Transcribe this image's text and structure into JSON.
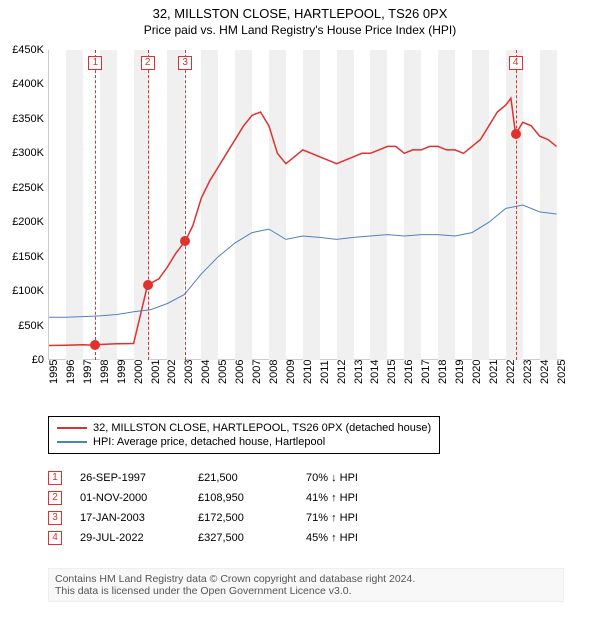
{
  "title_line1": "32, MILLSTON CLOSE, HARTLEPOOL, TS26 0PX",
  "title_line2": "Price paid vs. HM Land Registry's House Price Index (HPI)",
  "chart": {
    "type": "line",
    "background_color": "#ffffff",
    "xgrid_color": "#f0f0f0",
    "ylim": [
      0,
      450000
    ],
    "yticks": [
      0,
      50000,
      100000,
      150000,
      200000,
      250000,
      300000,
      350000,
      400000,
      450000
    ],
    "ytick_labels": [
      "£0",
      "£50K",
      "£100K",
      "£150K",
      "£200K",
      "£250K",
      "£300K",
      "£350K",
      "£400K",
      "£450K"
    ],
    "xlim": [
      1995,
      2025.5
    ],
    "xticks": [
      1995,
      1996,
      1997,
      1998,
      1999,
      2000,
      2001,
      2002,
      2003,
      2004,
      2005,
      2006,
      2007,
      2008,
      2009,
      2010,
      2011,
      2012,
      2013,
      2014,
      2015,
      2016,
      2017,
      2018,
      2019,
      2020,
      2021,
      2022,
      2023,
      2024,
      2025
    ],
    "tick_fontsize": 11,
    "series": [
      {
        "name": "price_paid",
        "label": "32, MILLSTON CLOSE, HARTLEPOOL, TS26 0PX (detached house)",
        "color": "#e03030",
        "line_width": 1.5,
        "data": [
          [
            1995,
            21000
          ],
          [
            1996,
            21500
          ],
          [
            1997,
            22000
          ],
          [
            1997.74,
            21500
          ],
          [
            1998,
            22500
          ],
          [
            1999,
            23500
          ],
          [
            2000,
            24000
          ],
          [
            2000.83,
            108950
          ],
          [
            2001,
            111000
          ],
          [
            2001.5,
            118000
          ],
          [
            2002,
            135000
          ],
          [
            2002.5,
            155000
          ],
          [
            2003.05,
            172500
          ],
          [
            2003.5,
            195000
          ],
          [
            2004,
            235000
          ],
          [
            2004.5,
            260000
          ],
          [
            2005,
            280000
          ],
          [
            2005.5,
            300000
          ],
          [
            2006,
            320000
          ],
          [
            2006.5,
            340000
          ],
          [
            2007,
            355000
          ],
          [
            2007.5,
            360000
          ],
          [
            2008,
            340000
          ],
          [
            2008.5,
            300000
          ],
          [
            2009,
            285000
          ],
          [
            2009.5,
            295000
          ],
          [
            2010,
            305000
          ],
          [
            2010.5,
            300000
          ],
          [
            2011,
            295000
          ],
          [
            2011.5,
            290000
          ],
          [
            2012,
            285000
          ],
          [
            2012.5,
            290000
          ],
          [
            2013,
            295000
          ],
          [
            2013.5,
            300000
          ],
          [
            2014,
            300000
          ],
          [
            2014.5,
            305000
          ],
          [
            2015,
            310000
          ],
          [
            2015.5,
            310000
          ],
          [
            2016,
            300000
          ],
          [
            2016.5,
            305000
          ],
          [
            2017,
            305000
          ],
          [
            2017.5,
            310000
          ],
          [
            2018,
            310000
          ],
          [
            2018.5,
            305000
          ],
          [
            2019,
            305000
          ],
          [
            2019.5,
            300000
          ],
          [
            2020,
            310000
          ],
          [
            2020.5,
            320000
          ],
          [
            2021,
            340000
          ],
          [
            2021.5,
            360000
          ],
          [
            2022,
            370000
          ],
          [
            2022.3,
            380000
          ],
          [
            2022.58,
            327500
          ],
          [
            2023,
            345000
          ],
          [
            2023.5,
            340000
          ],
          [
            2024,
            325000
          ],
          [
            2024.5,
            320000
          ],
          [
            2025,
            310000
          ]
        ]
      },
      {
        "name": "hpi",
        "label": "HPI: Average price, detached house, Hartlepool",
        "color": "#5080c0",
        "line_width": 1,
        "data": [
          [
            1995,
            62000
          ],
          [
            1996,
            62000
          ],
          [
            1997,
            63000
          ],
          [
            1998,
            64000
          ],
          [
            1999,
            66000
          ],
          [
            2000,
            70000
          ],
          [
            2001,
            73000
          ],
          [
            2002,
            82000
          ],
          [
            2003,
            95000
          ],
          [
            2004,
            125000
          ],
          [
            2005,
            150000
          ],
          [
            2006,
            170000
          ],
          [
            2007,
            185000
          ],
          [
            2008,
            190000
          ],
          [
            2009,
            175000
          ],
          [
            2010,
            180000
          ],
          [
            2011,
            178000
          ],
          [
            2012,
            175000
          ],
          [
            2013,
            178000
          ],
          [
            2014,
            180000
          ],
          [
            2015,
            182000
          ],
          [
            2016,
            180000
          ],
          [
            2017,
            182000
          ],
          [
            2018,
            182000
          ],
          [
            2019,
            180000
          ],
          [
            2020,
            185000
          ],
          [
            2021,
            200000
          ],
          [
            2022,
            220000
          ],
          [
            2023,
            225000
          ],
          [
            2024,
            215000
          ],
          [
            2025,
            212000
          ]
        ]
      }
    ],
    "sale_markers": [
      {
        "num": "1",
        "year": 1997.74,
        "price": 21500
      },
      {
        "num": "2",
        "year": 2000.83,
        "price": 108950
      },
      {
        "num": "3",
        "year": 2003.05,
        "price": 172500
      },
      {
        "num": "4",
        "year": 2022.58,
        "price": 327500
      }
    ]
  },
  "legend": {
    "border_color": "#000000",
    "items": [
      {
        "color": "#e03030",
        "label": "32, MILLSTON CLOSE, HARTLEPOOL, TS26 0PX (detached house)"
      },
      {
        "color": "#5080c0",
        "label": "HPI: Average price, detached house, Hartlepool"
      }
    ]
  },
  "sales_table": {
    "rows": [
      {
        "num": "1",
        "date": "26-SEP-1997",
        "price": "£21,500",
        "diff": "70% ↓ HPI"
      },
      {
        "num": "2",
        "date": "01-NOV-2000",
        "price": "£108,950",
        "diff": "41% ↑ HPI"
      },
      {
        "num": "3",
        "date": "17-JAN-2003",
        "price": "£172,500",
        "diff": "71% ↑ HPI"
      },
      {
        "num": "4",
        "date": "29-JUL-2022",
        "price": "£327,500",
        "diff": "45% ↑ HPI"
      }
    ]
  },
  "footer": {
    "line1": "Contains HM Land Registry data © Crown copyright and database right 2024.",
    "line2": "This data is licensed under the Open Government Licence v3.0."
  }
}
